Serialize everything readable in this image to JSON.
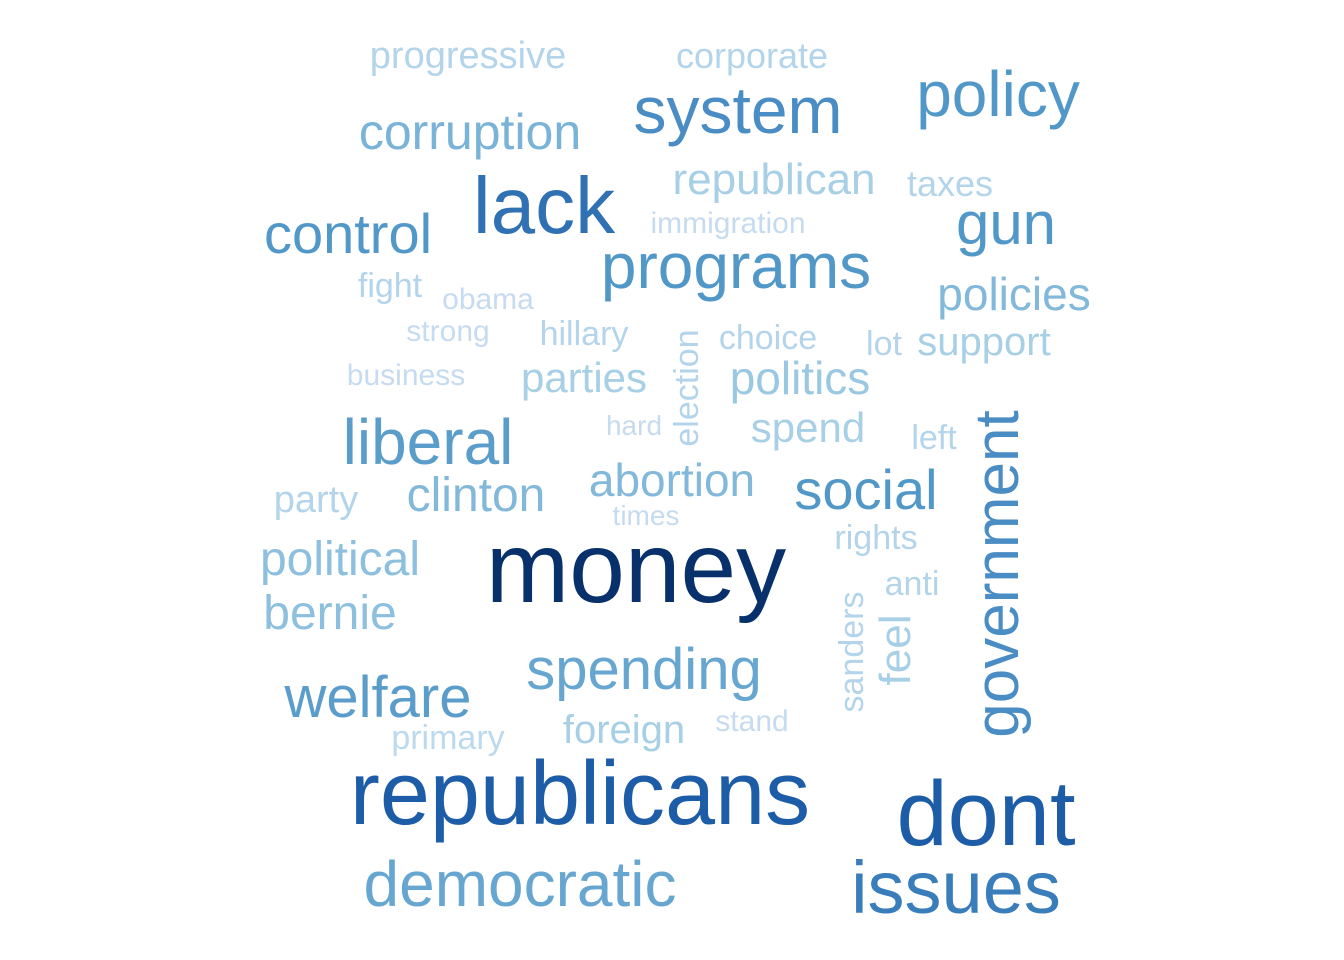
{
  "words": [
    {
      "text": "money",
      "color": "#08306b"
    },
    {
      "text": "republicans",
      "color": "#1d5ca7"
    },
    {
      "text": "dont",
      "color": "#1d5ca7"
    },
    {
      "text": "lack",
      "color": "#2f71b3"
    },
    {
      "text": "issues",
      "color": "#3a7dbb"
    },
    {
      "text": "government",
      "color": "#4a8dc4"
    },
    {
      "text": "system",
      "color": "#4a8dc4"
    },
    {
      "text": "policy",
      "color": "#5198c8"
    },
    {
      "text": "programs",
      "color": "#5198c8"
    },
    {
      "text": "gun",
      "color": "#5198c8"
    },
    {
      "text": "control",
      "color": "#5198c8"
    },
    {
      "text": "social",
      "color": "#5198c8"
    },
    {
      "text": "liberal",
      "color": "#5a9dcb"
    },
    {
      "text": "welfare",
      "color": "#5a9dcb"
    },
    {
      "text": "democratic",
      "color": "#66a6d0"
    },
    {
      "text": "spending",
      "color": "#66a6d0"
    },
    {
      "text": "corruption",
      "color": "#7ab3d8"
    },
    {
      "text": "policies",
      "color": "#82b8da"
    },
    {
      "text": "clinton",
      "color": "#82b8da"
    },
    {
      "text": "abortion",
      "color": "#82b8da"
    },
    {
      "text": "political",
      "color": "#8dbfde"
    },
    {
      "text": "bernie",
      "color": "#8dbfde"
    },
    {
      "text": "politics",
      "color": "#9ac8e3"
    },
    {
      "text": "parties",
      "color": "#a7cfe6"
    },
    {
      "text": "republican",
      "color": "#a7cfe6"
    },
    {
      "text": "support",
      "color": "#a7cfe6"
    },
    {
      "text": "feel",
      "color": "#a7cfe6"
    },
    {
      "text": "spend",
      "color": "#a7cfe6"
    },
    {
      "text": "foreign",
      "color": "#a7cfe6"
    },
    {
      "text": "progressive",
      "color": "#b3d4ea"
    },
    {
      "text": "corporate",
      "color": "#b3d4ea"
    },
    {
      "text": "taxes",
      "color": "#b3d4ea"
    },
    {
      "text": "party",
      "color": "#b3d4ea"
    },
    {
      "text": "hillary",
      "color": "#b3d4ea"
    },
    {
      "text": "choice",
      "color": "#b3d4ea"
    },
    {
      "text": "election",
      "color": "#b3d4ea"
    },
    {
      "text": "left",
      "color": "#b3d4ea"
    },
    {
      "text": "rights",
      "color": "#b3d4ea"
    },
    {
      "text": "anti",
      "color": "#b3d4ea"
    },
    {
      "text": "sanders",
      "color": "#b3d4ea"
    },
    {
      "text": "fight",
      "color": "#b3d4ea"
    },
    {
      "text": "lot",
      "color": "#b3d4ea"
    },
    {
      "text": "primary",
      "color": "#bcd9ee"
    },
    {
      "text": "immigration",
      "color": "#c6dbef"
    },
    {
      "text": "obama",
      "color": "#c6dbef"
    },
    {
      "text": "strong",
      "color": "#c6dbef"
    },
    {
      "text": "business",
      "color": "#c6dbef"
    },
    {
      "text": "hard",
      "color": "#c6dbef"
    },
    {
      "text": "times",
      "color": "#c6dbef"
    },
    {
      "text": "stand",
      "color": "#c6dbef"
    }
  ]
}
